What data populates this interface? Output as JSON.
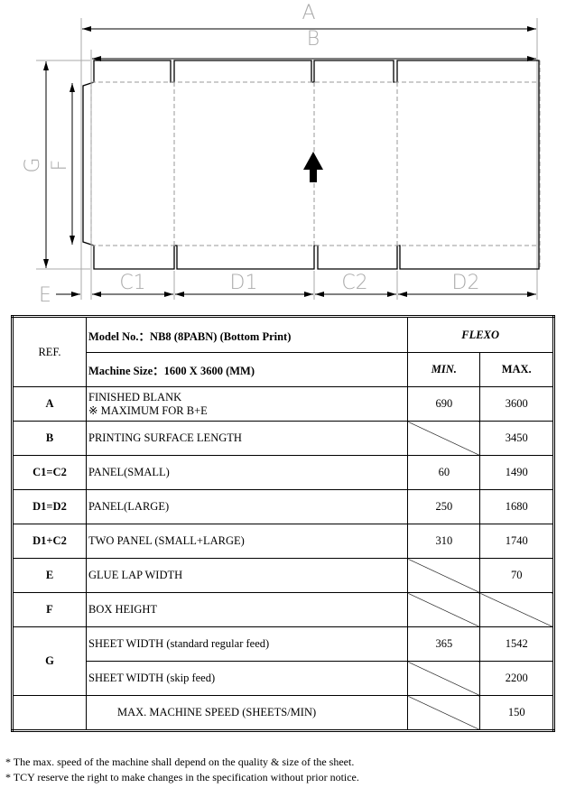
{
  "diagram": {
    "labels": {
      "A": "A",
      "B": "B",
      "G": "G",
      "F": "F",
      "E": "E",
      "C1": "C1",
      "D1": "D1",
      "C2": "C2",
      "D2": "D2"
    },
    "icon": "feed-direction-arrow-icon"
  },
  "table": {
    "ref_header": "REF.",
    "model": "Model No.：NB8 (8PABN)    (Bottom Print)",
    "machine_size": "Machine Size：1600 X 3600 (MM)",
    "process": "FLEXO",
    "min": "MIN.",
    "max": "MAX.",
    "rows": [
      {
        "ref": "A",
        "desc": "FINISHED BLANK",
        "note": "※  MAXIMUM FOR B+E",
        "min": "690",
        "max": "3600"
      },
      {
        "ref": "B",
        "desc": "PRINTING SURFACE LENGTH",
        "min": "",
        "max": "3450"
      },
      {
        "ref": "C1=C2",
        "desc": "PANEL(SMALL)",
        "min": "60",
        "max": "1490"
      },
      {
        "ref": "D1=D2",
        "desc": "PANEL(LARGE)",
        "min": "250",
        "max": "1680"
      },
      {
        "ref": "D1+C2",
        "desc": "TWO PANEL (SMALL+LARGE)",
        "min": "310",
        "max": "1740"
      },
      {
        "ref": "E",
        "desc": "GLUE LAP WIDTH",
        "min": "",
        "max": "70"
      },
      {
        "ref": "F",
        "desc": "BOX HEIGHT",
        "min": "",
        "max": ""
      },
      {
        "ref": "G",
        "desc": "SHEET WIDTH (standard regular feed)",
        "min": "365",
        "max": "1542"
      },
      {
        "ref": "",
        "desc": "SHEET WIDTH    (skip feed)",
        "min": "",
        "max": "2200"
      },
      {
        "ref": "",
        "desc": "MAX. MACHINE SPEED (SHEETS/MIN)",
        "min": "",
        "max": "150"
      }
    ]
  },
  "notes": [
    "* The max. speed of the machine shall depend on the quality & size of the sheet.",
    "* TCY reserve the right to make changes in the specification without prior notice."
  ]
}
